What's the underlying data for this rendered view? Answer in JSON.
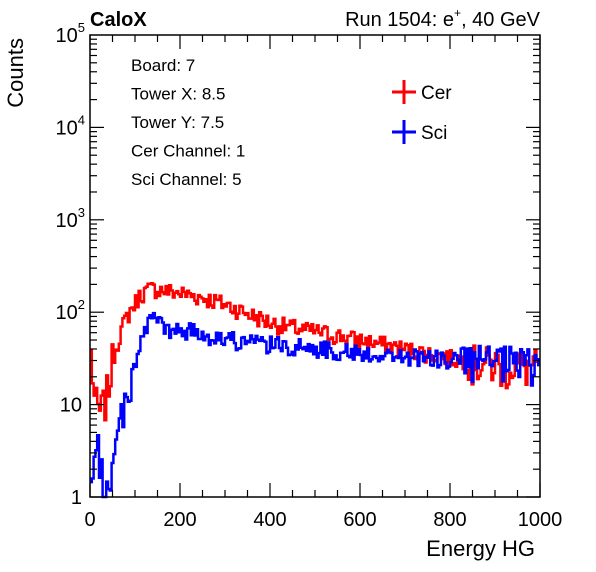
{
  "header": {
    "left": "CaloX",
    "right_prefix": "Run 1504: e",
    "right_sup": "+",
    "right_suffix": ", 40 GeV"
  },
  "info": {
    "lines": [
      "Board: 7",
      "Tower X: 8.5",
      "Tower Y: 7.5",
      "Cer Channel: 1",
      "Sci Channel: 5"
    ]
  },
  "chart_data": {
    "type": "line",
    "xlabel": "Energy HG",
    "ylabel": "Counts",
    "xlim": [
      0,
      1000
    ],
    "ylim": [
      1,
      100000
    ],
    "y_scale": "log",
    "x_ticks": [
      0,
      200,
      400,
      600,
      800,
      1000
    ],
    "y_ticks": [
      {
        "value": 1,
        "base": "1",
        "exp": ""
      },
      {
        "value": 10,
        "base": "10",
        "exp": ""
      },
      {
        "value": 100,
        "base": "10",
        "exp": "2"
      },
      {
        "value": 1000,
        "base": "10",
        "exp": "3"
      },
      {
        "value": 10000,
        "base": "10",
        "exp": "4"
      },
      {
        "value": 100000,
        "base": "10",
        "exp": "5"
      }
    ],
    "grid": false,
    "legend_position": "top-right",
    "series": [
      {
        "name": "Cer",
        "color": "#ff0000",
        "x": [
          0,
          10,
          20,
          30,
          40,
          50,
          60,
          70,
          80,
          90,
          100,
          110,
          120,
          130,
          140,
          150,
          160,
          170,
          180,
          190,
          200,
          220,
          240,
          260,
          280,
          300,
          320,
          340,
          360,
          380,
          400,
          420,
          440,
          460,
          480,
          500,
          520,
          540,
          560,
          580,
          600,
          620,
          640,
          660,
          680,
          700,
          720,
          740,
          760,
          780,
          800,
          820,
          840,
          860,
          880,
          900,
          920,
          940,
          960,
          980,
          1000
        ],
        "y": [
          50,
          12,
          8,
          10,
          15,
          30,
          45,
          65,
          85,
          105,
          125,
          150,
          165,
          175,
          180,
          178,
          175,
          170,
          168,
          165,
          162,
          155,
          148,
          140,
          132,
          122,
          112,
          102,
          93,
          85,
          78,
          73,
          70,
          67,
          64,
          62,
          60,
          57,
          55,
          52,
          50,
          48,
          46,
          44,
          42,
          40,
          38,
          37,
          35,
          34,
          32,
          31,
          30,
          29,
          28,
          28,
          27,
          27,
          26,
          26,
          26
        ]
      },
      {
        "name": "Sci",
        "color": "#0000ff",
        "x": [
          0,
          10,
          20,
          30,
          40,
          50,
          60,
          70,
          80,
          90,
          100,
          110,
          120,
          130,
          140,
          150,
          160,
          170,
          180,
          190,
          200,
          220,
          240,
          260,
          280,
          300,
          320,
          340,
          360,
          380,
          400,
          420,
          440,
          460,
          480,
          500,
          520,
          540,
          560,
          580,
          600,
          620,
          640,
          660,
          680,
          700,
          720,
          740,
          760,
          780,
          800,
          820,
          840,
          860,
          880,
          900,
          920,
          940,
          960,
          980,
          1000
        ],
        "y": [
          1,
          2,
          4,
          1,
          1.5,
          2,
          4,
          8,
          12,
          18,
          28,
          42,
          58,
          75,
          88,
          90,
          75,
          62,
          60,
          62,
          65,
          63,
          60,
          57,
          54,
          52,
          50,
          48,
          47,
          46,
          45,
          44,
          43,
          42,
          42,
          41,
          40,
          39,
          38,
          37,
          36,
          36,
          35,
          34,
          34,
          33,
          33,
          32,
          32,
          31,
          31,
          30,
          30,
          30,
          29,
          29,
          29,
          28,
          28,
          28,
          28
        ]
      }
    ]
  }
}
